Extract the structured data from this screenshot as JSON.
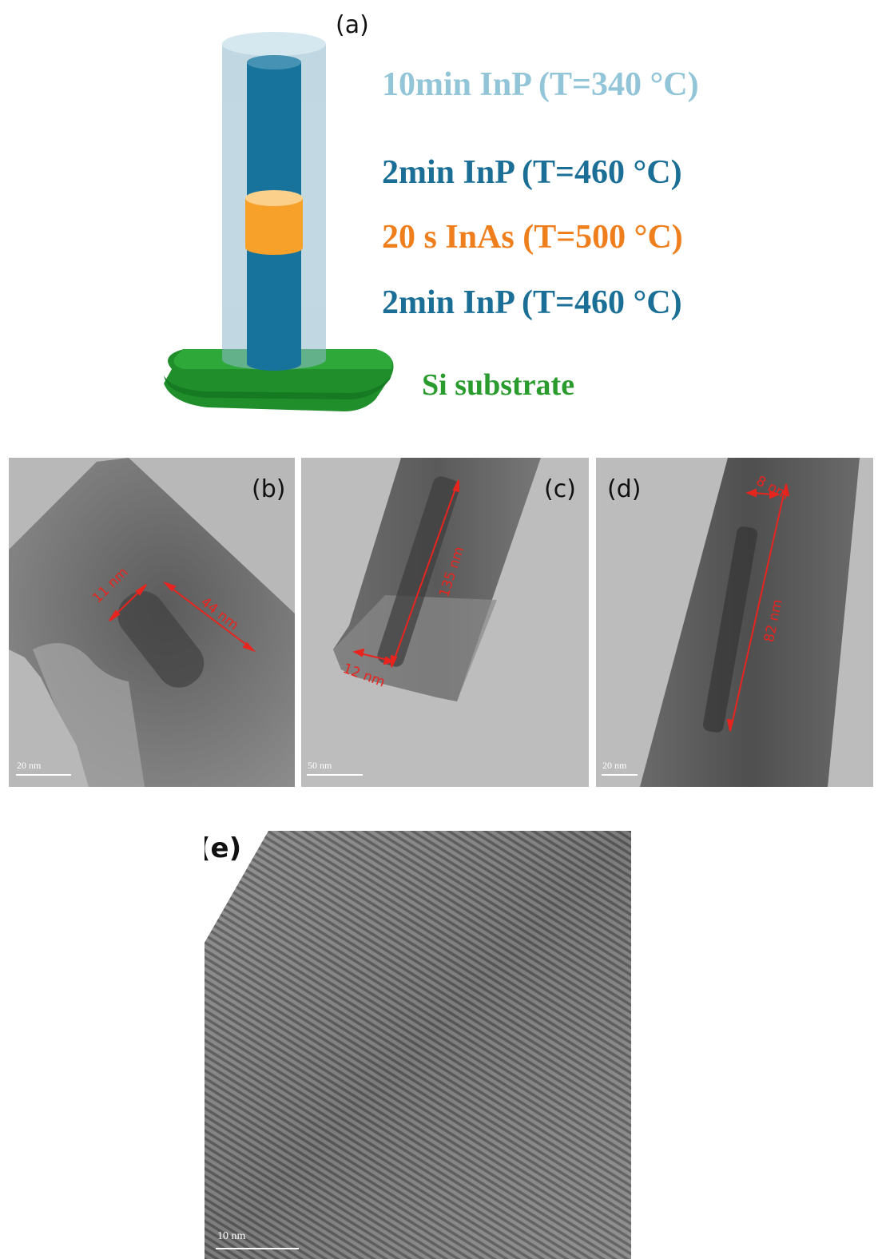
{
  "panel_a": {
    "label": "(a)",
    "legend": {
      "shell": "10min InP (T=340 °C)",
      "top_core": "2min InP (T=460 °C)",
      "insertion": "20 s InAs (T=500 °C)",
      "bottom_core": "2min InP (T=460 °C)",
      "substrate": "Si substrate"
    },
    "colors": {
      "shell": "#93c5d8",
      "core": "#1b6f96",
      "insertion": "#ef7e1c",
      "substrate": "#2a9c2e"
    }
  },
  "panel_b": {
    "label": "(b)",
    "width_annotation": "11 nm",
    "length_annotation": "44 nm",
    "scale_bar": "20 nm"
  },
  "panel_c": {
    "label": "(c)",
    "width_annotation": "12 nm",
    "length_annotation": "135 nm",
    "scale_bar": "50 nm"
  },
  "panel_d": {
    "label": "(d)",
    "width_annotation": "8 nm",
    "length_annotation": "82 nm",
    "scale_bar": "20 nm"
  },
  "panel_e": {
    "label": "(e)",
    "scale_bar": "10 nm"
  }
}
